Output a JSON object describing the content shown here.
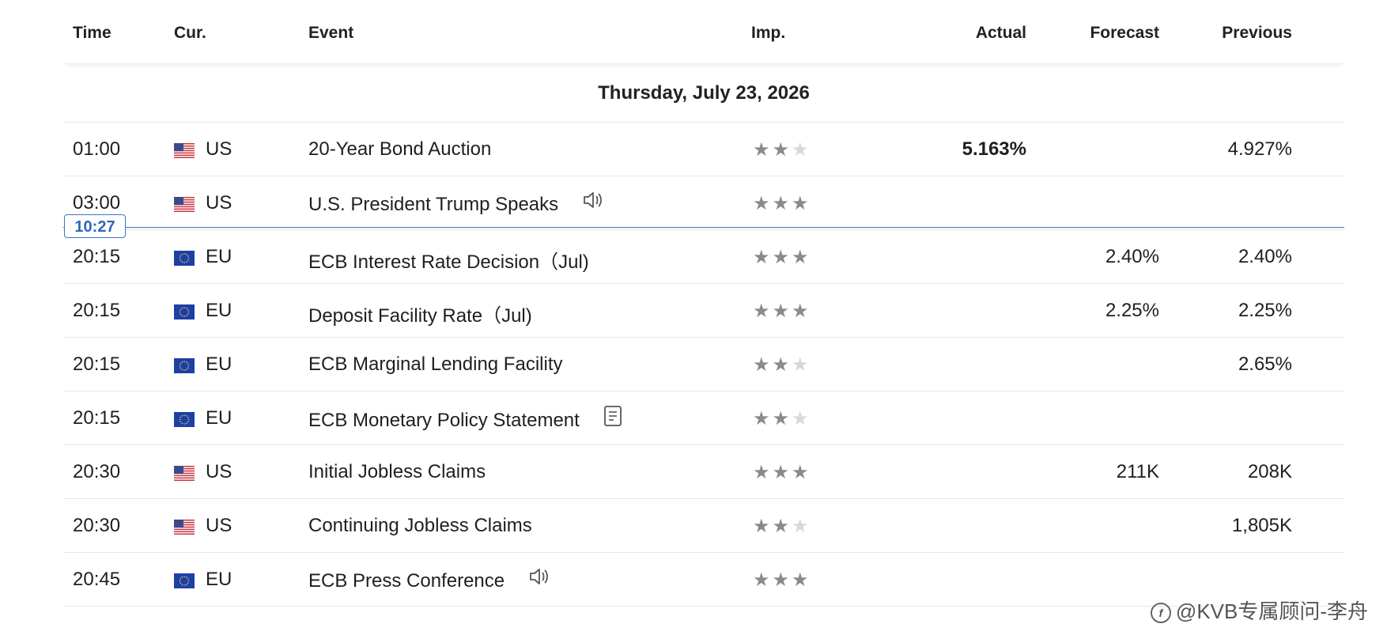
{
  "header": {
    "time": "Time",
    "currency": "Cur.",
    "event": "Event",
    "importance": "Imp.",
    "actual": "Actual",
    "forecast": "Forecast",
    "previous": "Previous"
  },
  "date_label": "Thursday, July 23, 2026",
  "now_time": "10:27",
  "colors": {
    "accent": "#3f74c4",
    "star_on": "#8a8a8a",
    "star_off": "#d8d8d8"
  },
  "rows": [
    {
      "time": "01:00",
      "flag": "us-flag-icon",
      "cur": "US",
      "event": "20-Year Bond Auction",
      "icon": "",
      "stars": 2,
      "actual": "5.163%",
      "forecast": "",
      "previous": "4.927%"
    },
    {
      "time": "03:00",
      "flag": "us-flag-icon",
      "cur": "US",
      "event": "U.S. President Trump Speaks",
      "icon": "speaker-icon",
      "stars": 3,
      "actual": "",
      "forecast": "",
      "previous": ""
    },
    {
      "time": "20:15",
      "flag": "eu-flag-icon",
      "cur": "EU",
      "event": "ECB Interest Rate Decision（Jul)",
      "icon": "",
      "stars": 3,
      "actual": "",
      "forecast": "2.40%",
      "previous": "2.40%"
    },
    {
      "time": "20:15",
      "flag": "eu-flag-icon",
      "cur": "EU",
      "event": "Deposit Facility Rate（Jul)",
      "icon": "",
      "stars": 3,
      "actual": "",
      "forecast": "2.25%",
      "previous": "2.25%"
    },
    {
      "time": "20:15",
      "flag": "eu-flag-icon",
      "cur": "EU",
      "event": "ECB Marginal Lending Facility",
      "icon": "",
      "stars": 2,
      "actual": "",
      "forecast": "",
      "previous": "2.65%"
    },
    {
      "time": "20:15",
      "flag": "eu-flag-icon",
      "cur": "EU",
      "event": "ECB Monetary Policy Statement",
      "icon": "document-icon",
      "stars": 2,
      "actual": "",
      "forecast": "",
      "previous": ""
    },
    {
      "time": "20:30",
      "flag": "us-flag-icon",
      "cur": "US",
      "event": "Initial Jobless Claims",
      "icon": "",
      "stars": 3,
      "actual": "",
      "forecast": "211K",
      "previous": "208K"
    },
    {
      "time": "20:30",
      "flag": "us-flag-icon",
      "cur": "US",
      "event": "Continuing Jobless Claims",
      "icon": "",
      "stars": 2,
      "actual": "",
      "forecast": "",
      "previous": "1,805K"
    },
    {
      "time": "20:45",
      "flag": "eu-flag-icon",
      "cur": "EU",
      "event": "ECB Press Conference",
      "icon": "speaker-icon",
      "stars": 3,
      "actual": "",
      "forecast": "",
      "previous": ""
    }
  ],
  "watermark": "@KVB专属顾问-李舟",
  "watermark_logo_icon": "zhihu-logo-icon"
}
